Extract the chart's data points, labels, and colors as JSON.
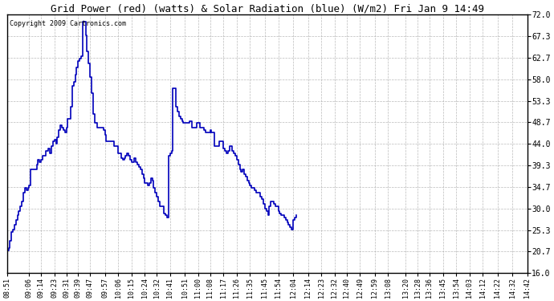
{
  "title": "Grid Power (red) (watts) & Solar Radiation (blue) (W/m2) Fri Jan 9 14:49",
  "copyright": "Copyright 2009 Cartronics.com",
  "line_color": "#0000bb",
  "background_color": "#ffffff",
  "grid_color": "#aaaaaa",
  "ylim": [
    16.0,
    72.0
  ],
  "yticks": [
    16.0,
    20.7,
    25.3,
    30.0,
    34.7,
    39.3,
    44.0,
    48.7,
    53.3,
    58.0,
    62.7,
    67.3,
    72.0
  ],
  "xtick_labels": [
    "08:51",
    "09:06",
    "09:14",
    "09:23",
    "09:31",
    "09:39",
    "09:47",
    "09:57",
    "10:06",
    "10:15",
    "10:24",
    "10:32",
    "10:41",
    "10:51",
    "11:00",
    "11:08",
    "11:17",
    "11:26",
    "11:35",
    "11:45",
    "11:54",
    "12:04",
    "12:14",
    "12:23",
    "12:32",
    "12:40",
    "12:49",
    "12:59",
    "13:08",
    "13:20",
    "13:28",
    "13:36",
    "13:45",
    "13:54",
    "14:03",
    "14:12",
    "14:22",
    "14:32",
    "14:42"
  ],
  "y_values": [
    21.0,
    21.5,
    23.0,
    25.0,
    25.5,
    26.5,
    27.5,
    28.5,
    29.5,
    30.5,
    31.5,
    33.5,
    34.5,
    34.0,
    34.5,
    35.0,
    38.5,
    38.5,
    38.5,
    38.5,
    39.5,
    40.5,
    40.0,
    40.5,
    41.5,
    41.5,
    42.5,
    42.5,
    43.0,
    42.0,
    43.5,
    44.5,
    45.0,
    44.0,
    45.5,
    47.0,
    48.0,
    47.5,
    47.0,
    46.5,
    47.5,
    49.5,
    49.5,
    52.0,
    56.5,
    57.5,
    59.0,
    60.5,
    62.0,
    62.5,
    63.0,
    70.5,
    70.5,
    67.5,
    64.0,
    61.5,
    58.5,
    55.0,
    50.5,
    48.5,
    48.5,
    47.5,
    47.5,
    47.5,
    47.5,
    47.0,
    46.0,
    44.5,
    44.5,
    44.5,
    44.5,
    44.5,
    43.5,
    43.5,
    43.5,
    42.0,
    42.0,
    41.0,
    40.5,
    41.0,
    41.5,
    42.0,
    41.5,
    40.5,
    40.0,
    40.0,
    41.0,
    40.0,
    39.5,
    39.0,
    38.5,
    37.5,
    36.5,
    35.5,
    35.5,
    35.0,
    35.5,
    36.5,
    36.0,
    34.5,
    33.5,
    32.5,
    31.5,
    30.5,
    30.5,
    30.5,
    29.0,
    28.5,
    28.0,
    41.5,
    42.0,
    42.5,
    56.0,
    56.0,
    52.0,
    51.0,
    50.0,
    49.5,
    49.0,
    48.5,
    48.5,
    48.5,
    48.5,
    49.0,
    49.0,
    47.5,
    47.5,
    47.5,
    48.5,
    48.5,
    47.5,
    47.5,
    47.5,
    47.0,
    46.5,
    46.5,
    46.5,
    47.0,
    46.5,
    46.5,
    43.5,
    43.5,
    43.5,
    44.5,
    44.5,
    44.5,
    43.0,
    42.5,
    42.0,
    42.5,
    43.5,
    43.5,
    42.5,
    42.0,
    41.5,
    40.5,
    39.5,
    38.5,
    38.0,
    38.5,
    37.5,
    37.0,
    36.0,
    35.5,
    35.0,
    34.5,
    34.5,
    34.0,
    33.5,
    33.5,
    33.5,
    32.5,
    32.0,
    31.0,
    30.0,
    29.5,
    28.5,
    30.5,
    31.5,
    31.5,
    31.0,
    30.5,
    30.5,
    29.5,
    29.0,
    28.5,
    28.5,
    28.0,
    27.5,
    27.0,
    26.5,
    26.0,
    25.5,
    27.5,
    28.0,
    28.5
  ],
  "xtick_positions": [
    0,
    15,
    23,
    32,
    40,
    48,
    56,
    66,
    75,
    84,
    93,
    101,
    110,
    120,
    129,
    137,
    146,
    155,
    164,
    174,
    183,
    193,
    203,
    212,
    221,
    229,
    238,
    248,
    257,
    269,
    277,
    285,
    294,
    303,
    312,
    321,
    331,
    341,
    351
  ]
}
